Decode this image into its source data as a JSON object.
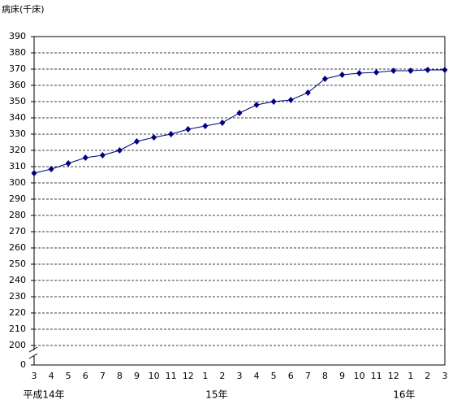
{
  "chart_data": {
    "type": "line",
    "y_axis_label": "病床(千床)",
    "categories": [
      "3",
      "4",
      "5",
      "6",
      "7",
      "8",
      "9",
      "10",
      "11",
      "12",
      "1",
      "2",
      "3",
      "4",
      "5",
      "6",
      "7",
      "8",
      "9",
      "10",
      "11",
      "12",
      "1",
      "2",
      "3"
    ],
    "category_groups": [
      {
        "label": "平成14年",
        "start": 0
      },
      {
        "label": "15年",
        "start": 10
      },
      {
        "label": "16年",
        "start": 22
      }
    ],
    "series": [
      {
        "name": "病床",
        "color": "#000080",
        "values": [
          306,
          308.5,
          312,
          315.5,
          317,
          320,
          325.5,
          328,
          330,
          333,
          335,
          337,
          343,
          348,
          350,
          351,
          355.5,
          364,
          366.5,
          367.5,
          368,
          369,
          369,
          369.5,
          369.5
        ]
      }
    ],
    "ylim": [
      200,
      390
    ],
    "yticks": [
      0,
      200,
      210,
      220,
      230,
      240,
      250,
      260,
      270,
      280,
      290,
      300,
      310,
      320,
      330,
      340,
      350,
      360,
      370,
      380,
      390
    ],
    "axis_break": true,
    "grid": true
  }
}
